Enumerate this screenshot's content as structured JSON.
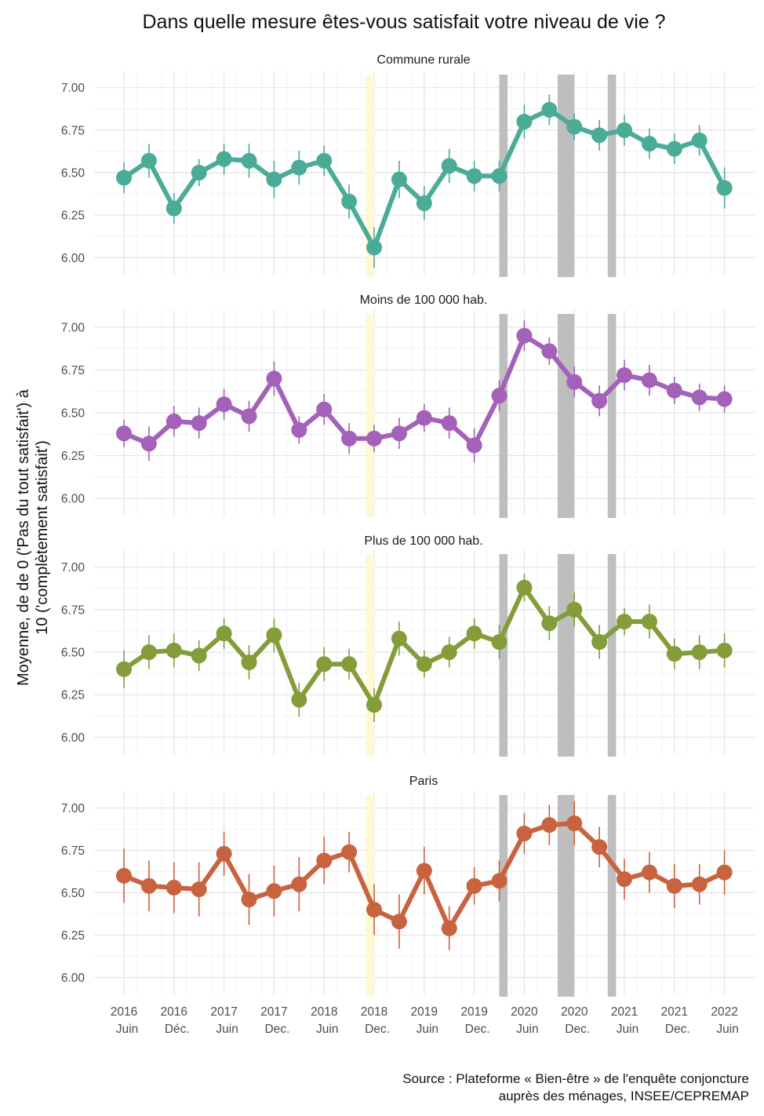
{
  "title": "Dans quelle mesure êtes-vous satisfait votre niveau de vie ?",
  "ylabel_line1": "Moyenne, de de 0 ('Pas du tout satisfait') à",
  "ylabel_line2": "10 ('complètement satisfait')",
  "caption_line1": "Source : Plateforme « Bien-être » de l'enquête conjoncture",
  "caption_line2": "auprès des ménages, INSEE/CEPREMAP",
  "chart_data": {
    "type": "line",
    "facets": [
      "Commune rurale",
      "Moins de 100 000 hab.",
      "Plus de 100 000 hab.",
      "Paris"
    ],
    "x_tick_labels": [
      [
        "2016",
        "Juin"
      ],
      [
        "2016",
        "Déc."
      ],
      [
        "2017",
        "Juin"
      ],
      [
        "2017",
        "Dec."
      ],
      [
        "2018",
        "Juin"
      ],
      [
        "2018",
        "Dec."
      ],
      [
        "2019",
        "Juin"
      ],
      [
        "2019",
        "Dec."
      ],
      [
        "2020",
        "Juin"
      ],
      [
        "2020",
        "Dec."
      ],
      [
        "2021",
        "Juin"
      ],
      [
        "2021",
        "Dec."
      ],
      [
        "2022",
        "Juin"
      ]
    ],
    "x": [
      "2016-06",
      "2016-09",
      "2016-12",
      "2017-03",
      "2017-06",
      "2017-09",
      "2017-12",
      "2018-03",
      "2018-06",
      "2018-09",
      "2018-12",
      "2019-03",
      "2019-06",
      "2019-09",
      "2019-12",
      "2020-03",
      "2020-06",
      "2020-09",
      "2020-12",
      "2021-03",
      "2021-06",
      "2021-09",
      "2021-12",
      "2022-03",
      "2022-06"
    ],
    "ylim": [
      5.9,
      7.1
    ],
    "y_ticks": [
      "6.00",
      "6.25",
      "6.50",
      "6.75",
      "7.00"
    ],
    "highlight_periods": [
      {
        "type": "yellow",
        "color": "#fff8d0",
        "start": "2018-11",
        "end": "2018-12"
      },
      {
        "type": "gray",
        "color": "#bebebe",
        "start": "2020-03",
        "end": "2020-04"
      },
      {
        "type": "gray",
        "color": "#bebebe",
        "start": "2020-10",
        "end": "2020-12"
      },
      {
        "type": "gray",
        "color": "#bebebe",
        "start": "2021-04",
        "end": "2021-05"
      }
    ],
    "series": [
      {
        "facet": "Commune rurale",
        "color": "#4aab96",
        "values": [
          6.47,
          6.57,
          6.29,
          6.5,
          6.58,
          6.57,
          6.46,
          6.53,
          6.57,
          6.33,
          6.06,
          6.46,
          6.32,
          6.54,
          6.48,
          6.48,
          6.8,
          6.87,
          6.77,
          6.72,
          6.75,
          6.67,
          6.64,
          6.69,
          6.41
        ],
        "err": [
          0.09,
          0.1,
          0.09,
          0.08,
          0.09,
          0.1,
          0.11,
          0.1,
          0.09,
          0.1,
          0.12,
          0.11,
          0.1,
          0.1,
          0.09,
          0.09,
          0.1,
          0.09,
          0.08,
          0.09,
          0.09,
          0.09,
          0.09,
          0.09,
          0.12
        ]
      },
      {
        "facet": "Moins de 100 000 hab.",
        "color": "#a361b9",
        "values": [
          6.38,
          6.32,
          6.45,
          6.44,
          6.55,
          6.48,
          6.7,
          6.4,
          6.52,
          6.35,
          6.35,
          6.38,
          6.47,
          6.44,
          6.31,
          6.6,
          6.95,
          6.86,
          6.68,
          6.57,
          6.72,
          6.69,
          6.63,
          6.59,
          6.58
        ],
        "err": [
          0.08,
          0.1,
          0.09,
          0.09,
          0.09,
          0.09,
          0.1,
          0.08,
          0.09,
          0.09,
          0.08,
          0.09,
          0.08,
          0.09,
          0.1,
          0.09,
          0.09,
          0.08,
          0.09,
          0.09,
          0.09,
          0.09,
          0.08,
          0.08,
          0.08
        ]
      },
      {
        "facet": "Plus de 100 000 hab.",
        "color": "#849c3a",
        "values": [
          6.4,
          6.5,
          6.51,
          6.48,
          6.61,
          6.44,
          6.6,
          6.22,
          6.43,
          6.43,
          6.19,
          6.58,
          6.43,
          6.5,
          6.61,
          6.56,
          6.88,
          6.67,
          6.75,
          6.56,
          6.68,
          6.68,
          6.49,
          6.5,
          6.51
        ],
        "err": [
          0.11,
          0.1,
          0.1,
          0.09,
          0.09,
          0.1,
          0.1,
          0.1,
          0.1,
          0.09,
          0.1,
          0.1,
          0.08,
          0.09,
          0.09,
          0.1,
          0.08,
          0.1,
          0.1,
          0.1,
          0.08,
          0.1,
          0.09,
          0.1,
          0.1
        ]
      },
      {
        "facet": "Paris",
        "color": "#c9623e",
        "values": [
          6.6,
          6.54,
          6.53,
          6.52,
          6.73,
          6.46,
          6.51,
          6.55,
          6.69,
          6.74,
          6.4,
          6.33,
          6.63,
          6.29,
          6.54,
          6.57,
          6.85,
          6.9,
          6.91,
          6.77,
          6.58,
          6.62,
          6.54,
          6.55,
          6.62
        ],
        "err": [
          0.16,
          0.15,
          0.15,
          0.16,
          0.13,
          0.15,
          0.15,
          0.16,
          0.14,
          0.12,
          0.15,
          0.16,
          0.14,
          0.13,
          0.11,
          0.12,
          0.12,
          0.12,
          0.13,
          0.12,
          0.12,
          0.12,
          0.13,
          0.12,
          0.13
        ]
      }
    ]
  }
}
